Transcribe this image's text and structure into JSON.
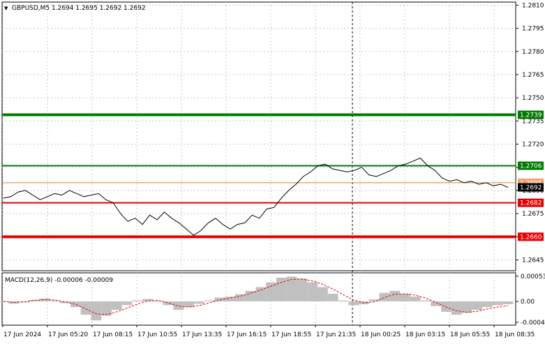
{
  "header": {
    "symbol": "GBPUSD,M5",
    "open": "1.2694",
    "high": "1.2695",
    "low": "1.2692",
    "close": "1.2692"
  },
  "colors": {
    "background": "#ffffff",
    "grid": "#c8c8c8",
    "price_line": "#000000",
    "green_line": "#007a00",
    "red_line": "#e60000",
    "ask_line": "#e67e22",
    "macd_hist": "#c0c0c0",
    "macd_signal": "#e60000",
    "current_price_box": "#000000"
  },
  "chart_data": [
    {
      "type": "line",
      "title": "GBPUSD,M5",
      "ylim": [
        1.2638,
        1.2812
      ],
      "y_ticks": [
        "1.2810",
        "1.2795",
        "1.2780",
        "1.2765",
        "1.2750",
        "1.2735",
        "1.2720",
        "1.2705",
        "1.2690",
        "1.2675",
        "1.2660",
        "1.2645"
      ],
      "x_ticks": [
        "17 Jun 2024",
        "17 Jun 05:20",
        "17 Jun 08:15",
        "17 Jun 10:55",
        "17 Jun 13:35",
        "17 Jun 16:15",
        "17 Jun 18:55",
        "17 Jun 21:35",
        "18 Jun 00:25",
        "18 Jun 03:15",
        "18 Jun 05:55",
        "18 Jun 08:35"
      ],
      "series": [
        {
          "values": [
            1.2685,
            1.2686,
            1.2689,
            1.269,
            1.2687,
            1.2684,
            1.2686,
            1.2688,
            1.2687,
            1.269,
            1.2688,
            1.2686,
            1.2687,
            1.2688,
            1.2684,
            1.2682,
            1.2675,
            1.267,
            1.2672,
            1.2668,
            1.2674,
            1.2671,
            1.2676,
            1.2672,
            1.2669,
            1.2665,
            1.2661,
            1.2664,
            1.2669,
            1.2672,
            1.2668,
            1.2665,
            1.2668,
            1.2669,
            1.2674,
            1.2672,
            1.2678,
            1.2679,
            1.2685,
            1.269,
            1.2694,
            1.2699,
            1.2702,
            1.2706,
            1.2707,
            1.2704,
            1.2703,
            1.2702,
            1.2703,
            1.2705,
            1.27,
            1.2699,
            1.2701,
            1.2703,
            1.2706,
            1.2707,
            1.2709,
            1.2711,
            1.2706,
            1.2703,
            1.2698,
            1.2696,
            1.2697,
            1.2695,
            1.2696,
            1.2694,
            1.2695,
            1.2693,
            1.2694,
            1.2692
          ]
        }
      ],
      "levels": [
        {
          "value": 1.2739,
          "label": "1.2739",
          "color": "green",
          "style": "thick"
        },
        {
          "value": 1.2706,
          "label": "1.2706",
          "color": "green",
          "style": "normal"
        },
        {
          "value": 1.2682,
          "label": "1.2682",
          "color": "red",
          "style": "normal"
        },
        {
          "value": 1.266,
          "label": "1.2660",
          "color": "red",
          "style": "thick"
        }
      ],
      "ask_label": "1.2695",
      "current_price": "1.2692",
      "grid": true,
      "period_separator": "18 Jun 2024"
    },
    {
      "type": "bar",
      "title": "MACD(12,26,9) -0.00006 -0.00009",
      "ylim": [
        -0.0005,
        0.0006
      ],
      "y_ticks": [
        "0.00053",
        "0.00",
        "-0.00044"
      ],
      "histogram": [
        0.0,
        -5e-05,
        -2e-05,
        3e-05,
        6e-05,
        2e-05,
        -4e-05,
        -0.00012,
        -0.00028,
        -0.0004,
        -0.0003,
        -0.00018,
        -8e-05,
        2e-05,
        5e-05,
        1e-05,
        -8e-05,
        -0.00018,
        -0.00012,
        -5e-05,
        2e-05,
        8e-05,
        0.0001,
        0.00015,
        0.00022,
        0.0003,
        0.0004,
        0.0005,
        0.00052,
        0.00048,
        0.0004,
        0.0003,
        0.00016,
        2e-05,
        -8e-05,
        -6e-05,
        4e-05,
        0.00018,
        0.00022,
        0.00016,
        0.0001,
        2e-05,
        -0.0001,
        -0.00022,
        -0.00028,
        -0.00024,
        -0.00018,
        -0.00012,
        -8e-05,
        -6e-05
      ],
      "signal": [
        0.0,
        -2e-05,
        -1e-05,
        2e-05,
        4e-05,
        3e-05,
        -1e-05,
        -6e-05,
        -0.00016,
        -0.00026,
        -0.00028,
        -0.00022,
        -0.00014,
        -6e-05,
        1e-05,
        2e-05,
        -3e-05,
        -0.0001,
        -0.00012,
        -9e-05,
        -3e-05,
        3e-05,
        7e-05,
        0.00011,
        0.00017,
        0.00024,
        0.00032,
        0.0004,
        0.00046,
        0.00047,
        0.00043,
        0.00036,
        0.00026,
        0.00014,
        3e-05,
        -3e-05,
        -1e-05,
        8e-05,
        0.00015,
        0.00016,
        0.00013,
        7e-05,
        -2e-05,
        -0.00012,
        -0.0002,
        -0.00023,
        -0.00021,
        -0.00016,
        -0.00012,
        -9e-05
      ]
    }
  ]
}
